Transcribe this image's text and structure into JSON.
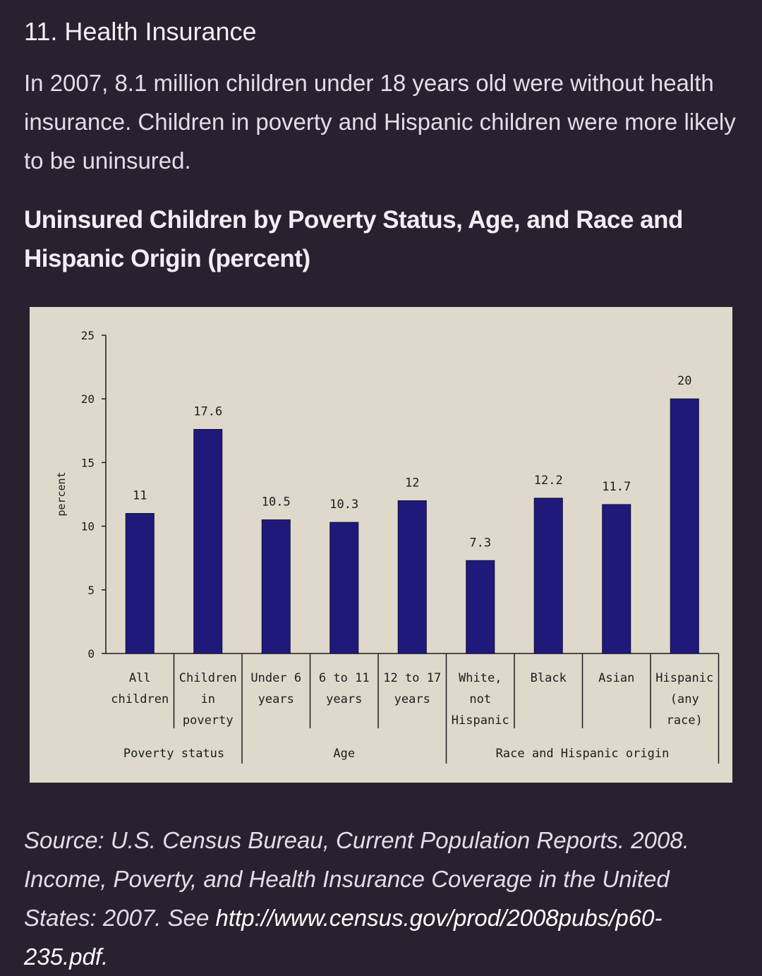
{
  "section": {
    "heading": "11. Health Insurance",
    "intro": "In 2007, 8.1 million children under 18 years old were without health insurance. Children in poverty and Hispanic children were more likely to be uninsured.",
    "chart_title": "Uninsured Children by Poverty Status, Age, and Race and Hispanic Origin (percent)",
    "source_prefix": "Source: U.S. Census Bureau, Current Population Reports. 2008. Income, Poverty, and Health Insurance Coverage in the United States: 2007. See ",
    "source_link": "http://www.census.gov/prod/2008pubs/p60-235.pdf."
  },
  "chart_data": {
    "type": "bar",
    "title": "Uninsured Children by Poverty Status, Age, and Race and Hispanic Origin (percent)",
    "ylabel": "percent",
    "ylim": [
      0,
      25
    ],
    "yticks": [
      0,
      5,
      10,
      15,
      20,
      25
    ],
    "grid": false,
    "bar_color": "#1f1a7a",
    "categories": [
      [
        "All",
        "children"
      ],
      [
        "Children",
        "in",
        "poverty"
      ],
      [
        "Under 6",
        "years"
      ],
      [
        "6 to 11",
        "years"
      ],
      [
        "12 to 17",
        "years"
      ],
      [
        "White,",
        "not",
        "Hispanic"
      ],
      [
        "Black"
      ],
      [
        "Asian"
      ],
      [
        "Hispanic",
        "(any",
        "race)"
      ]
    ],
    "values": [
      11,
      17.6,
      10.5,
      10.3,
      12,
      7.3,
      12.2,
      11.7,
      20
    ],
    "value_labels": [
      "11",
      "17.6",
      "10.5",
      "10.3",
      "12",
      "7.3",
      "12.2",
      "11.7",
      "20"
    ],
    "groups": [
      {
        "label": "Poverty status",
        "categories": [
          0,
          1
        ]
      },
      {
        "label": "Age",
        "categories": [
          2,
          3,
          4
        ]
      },
      {
        "label": "Race and Hispanic origin",
        "categories": [
          5,
          6,
          7,
          8
        ]
      }
    ]
  }
}
